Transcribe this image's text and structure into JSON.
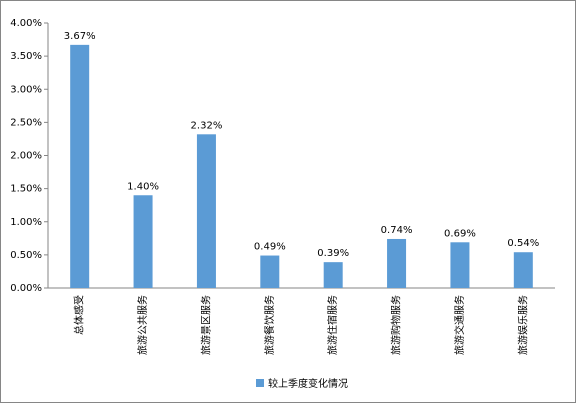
{
  "chart_data": {
    "type": "bar",
    "categories": [
      "总体感受",
      "旅游公共服务",
      "旅游景区服务",
      "旅游餐饮服务",
      "旅游住宿服务",
      "旅游购物服务",
      "旅游交通服务",
      "旅游娱乐服务"
    ],
    "series": [
      {
        "name": "较上季度变化情况",
        "color": "#5b9bd5",
        "values": [
          3.67,
          1.4,
          2.32,
          0.49,
          0.39,
          0.74,
          0.69,
          0.54
        ],
        "value_labels": [
          "3.67%",
          "1.40%",
          "2.32%",
          "0.49%",
          "0.39%",
          "0.74%",
          "0.69%",
          "0.54%"
        ]
      }
    ],
    "ylim": [
      0,
      4
    ],
    "yticks": [
      {
        "value": 0,
        "label": "0.00%"
      },
      {
        "value": 0.5,
        "label": "0.50%"
      },
      {
        "value": 1,
        "label": "1.00%"
      },
      {
        "value": 1.5,
        "label": "1.50%"
      },
      {
        "value": 2,
        "label": "2.00%"
      },
      {
        "value": 2.5,
        "label": "2.50%"
      },
      {
        "value": 3,
        "label": "3.00%"
      },
      {
        "value": 3.5,
        "label": "3.50%"
      },
      {
        "value": 4,
        "label": "4.00%"
      }
    ],
    "legend": "bottom"
  }
}
